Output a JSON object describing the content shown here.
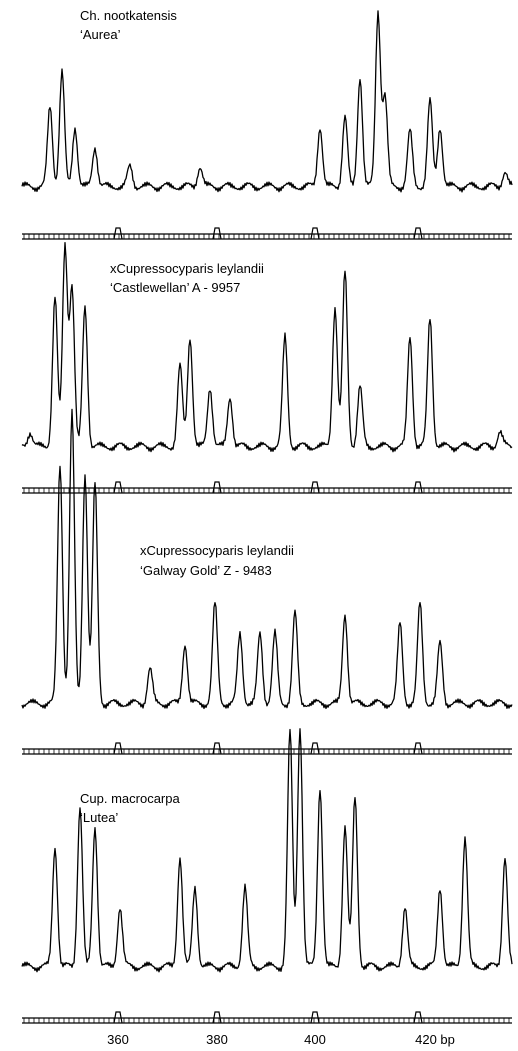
{
  "panels": [
    {
      "name": "Ch. nootkatensis",
      "cultivar": "‘Aurea’"
    },
    {
      "name": "xCupressocyparis leylandii",
      "cultivar": "‘Castlewellan’ A - 9957"
    },
    {
      "name": "xCupressocyparis leylandii",
      "cultivar": "‘Galway Gold’ Z - 9483"
    },
    {
      "name": "Cup. macrocarpa",
      "cultivar": "‘Lutea’"
    }
  ],
  "axis": {
    "labels": [
      "360",
      "380",
      "400",
      "420 bp"
    ]
  }
}
